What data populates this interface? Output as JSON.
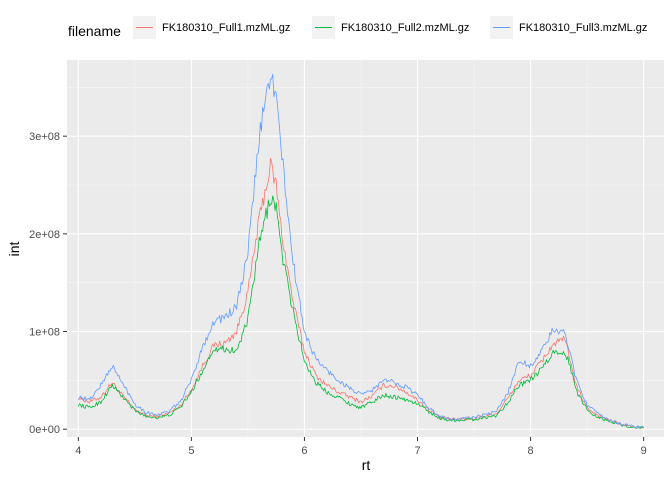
{
  "chart_data": {
    "type": "line",
    "title": "",
    "xlabel": "rt",
    "ylabel": "int",
    "xlim": [
      3.9,
      9.18
    ],
    "ylim": [
      -8000000,
      378000000
    ],
    "x_ticks": [
      4,
      5,
      6,
      7,
      8,
      9
    ],
    "x_tick_labels": [
      "4",
      "5",
      "6",
      "7",
      "8",
      "9"
    ],
    "y_ticks": [
      0,
      100000000,
      200000000,
      300000000
    ],
    "y_tick_labels": [
      "0e+00",
      "1e+08",
      "2e+08",
      "3e+08"
    ],
    "grid": true,
    "legend": {
      "position": "top",
      "title": "filename"
    },
    "series": [
      {
        "name": "FK180310_Full1.mzML.gz",
        "color": "#F8766D",
        "points": [
          [
            4.0,
            32000000
          ],
          [
            4.1,
            28000000
          ],
          [
            4.2,
            33000000
          ],
          [
            4.3,
            48000000
          ],
          [
            4.4,
            33000000
          ],
          [
            4.5,
            20000000
          ],
          [
            4.6,
            14000000
          ],
          [
            4.7,
            13000000
          ],
          [
            4.8,
            16000000
          ],
          [
            4.9,
            24000000
          ],
          [
            5.0,
            40000000
          ],
          [
            5.1,
            65000000
          ],
          [
            5.2,
            86000000
          ],
          [
            5.3,
            88000000
          ],
          [
            5.4,
            100000000
          ],
          [
            5.5,
            140000000
          ],
          [
            5.6,
            215000000
          ],
          [
            5.7,
            270000000
          ],
          [
            5.75,
            250000000
          ],
          [
            5.8,
            200000000
          ],
          [
            5.9,
            130000000
          ],
          [
            6.0,
            80000000
          ],
          [
            6.1,
            55000000
          ],
          [
            6.2,
            45000000
          ],
          [
            6.3,
            38000000
          ],
          [
            6.4,
            33000000
          ],
          [
            6.5,
            28000000
          ],
          [
            6.6,
            34000000
          ],
          [
            6.7,
            45000000
          ],
          [
            6.8,
            44000000
          ],
          [
            6.9,
            38000000
          ],
          [
            7.0,
            30000000
          ],
          [
            7.1,
            20000000
          ],
          [
            7.2,
            12000000
          ],
          [
            7.3,
            10000000
          ],
          [
            7.5,
            11000000
          ],
          [
            7.7,
            16000000
          ],
          [
            7.8,
            32000000
          ],
          [
            7.9,
            50000000
          ],
          [
            8.0,
            55000000
          ],
          [
            8.1,
            70000000
          ],
          [
            8.2,
            87000000
          ],
          [
            8.3,
            92000000
          ],
          [
            8.35,
            72000000
          ],
          [
            8.4,
            45000000
          ],
          [
            8.5,
            22000000
          ],
          [
            8.6,
            14000000
          ],
          [
            8.7,
            9000000
          ],
          [
            8.8,
            5000000
          ],
          [
            8.9,
            2500000
          ],
          [
            9.0,
            1500000
          ]
        ]
      },
      {
        "name": "FK180310_Full2.mzML.gz",
        "color": "#00BA38",
        "points": [
          [
            4.0,
            25000000
          ],
          [
            4.1,
            22000000
          ],
          [
            4.2,
            28000000
          ],
          [
            4.3,
            45000000
          ],
          [
            4.4,
            32000000
          ],
          [
            4.5,
            19000000
          ],
          [
            4.6,
            13000000
          ],
          [
            4.7,
            12000000
          ],
          [
            4.8,
            14000000
          ],
          [
            4.9,
            22000000
          ],
          [
            5.0,
            38000000
          ],
          [
            5.1,
            60000000
          ],
          [
            5.2,
            83000000
          ],
          [
            5.3,
            82000000
          ],
          [
            5.4,
            80000000
          ],
          [
            5.5,
            112000000
          ],
          [
            5.6,
            190000000
          ],
          [
            5.7,
            238000000
          ],
          [
            5.75,
            228000000
          ],
          [
            5.8,
            180000000
          ],
          [
            5.9,
            120000000
          ],
          [
            6.0,
            70000000
          ],
          [
            6.1,
            48000000
          ],
          [
            6.2,
            38000000
          ],
          [
            6.3,
            33000000
          ],
          [
            6.4,
            26000000
          ],
          [
            6.5,
            22000000
          ],
          [
            6.6,
            28000000
          ],
          [
            6.7,
            35000000
          ],
          [
            6.8,
            33000000
          ],
          [
            6.9,
            30000000
          ],
          [
            7.0,
            26000000
          ],
          [
            7.1,
            18000000
          ],
          [
            7.2,
            11000000
          ],
          [
            7.3,
            9000000
          ],
          [
            7.5,
            10000000
          ],
          [
            7.7,
            14000000
          ],
          [
            7.8,
            28000000
          ],
          [
            7.9,
            45000000
          ],
          [
            8.0,
            50000000
          ],
          [
            8.1,
            62000000
          ],
          [
            8.2,
            78000000
          ],
          [
            8.3,
            80000000
          ],
          [
            8.35,
            65000000
          ],
          [
            8.4,
            40000000
          ],
          [
            8.5,
            20000000
          ],
          [
            8.6,
            12000000
          ],
          [
            8.7,
            8000000
          ],
          [
            8.8,
            4500000
          ],
          [
            8.9,
            2000000
          ],
          [
            9.0,
            1500000
          ]
        ]
      },
      {
        "name": "FK180310_Full3.mzML.gz",
        "color": "#619CFF",
        "points": [
          [
            4.0,
            33000000
          ],
          [
            4.1,
            30000000
          ],
          [
            4.2,
            45000000
          ],
          [
            4.3,
            65000000
          ],
          [
            4.4,
            45000000
          ],
          [
            4.5,
            26000000
          ],
          [
            4.6,
            17000000
          ],
          [
            4.7,
            15000000
          ],
          [
            4.8,
            18000000
          ],
          [
            4.9,
            28000000
          ],
          [
            5.0,
            50000000
          ],
          [
            5.1,
            85000000
          ],
          [
            5.2,
            110000000
          ],
          [
            5.3,
            115000000
          ],
          [
            5.4,
            125000000
          ],
          [
            5.5,
            180000000
          ],
          [
            5.6,
            300000000
          ],
          [
            5.7,
            365000000
          ],
          [
            5.75,
            340000000
          ],
          [
            5.8,
            280000000
          ],
          [
            5.9,
            170000000
          ],
          [
            6.0,
            100000000
          ],
          [
            6.1,
            72000000
          ],
          [
            6.2,
            60000000
          ],
          [
            6.3,
            50000000
          ],
          [
            6.4,
            42000000
          ],
          [
            6.5,
            35000000
          ],
          [
            6.6,
            40000000
          ],
          [
            6.7,
            50000000
          ],
          [
            6.8,
            48000000
          ],
          [
            6.9,
            43000000
          ],
          [
            7.0,
            35000000
          ],
          [
            7.1,
            22000000
          ],
          [
            7.2,
            13000000
          ],
          [
            7.3,
            10000000
          ],
          [
            7.5,
            12000000
          ],
          [
            7.7,
            18000000
          ],
          [
            7.8,
            38000000
          ],
          [
            7.9,
            70000000
          ],
          [
            8.0,
            65000000
          ],
          [
            8.1,
            80000000
          ],
          [
            8.2,
            102000000
          ],
          [
            8.3,
            98000000
          ],
          [
            8.35,
            80000000
          ],
          [
            8.4,
            52000000
          ],
          [
            8.5,
            25000000
          ],
          [
            8.6,
            15000000
          ],
          [
            8.7,
            9500000
          ],
          [
            8.8,
            5500000
          ],
          [
            8.9,
            3000000
          ],
          [
            9.0,
            1800000
          ]
        ]
      }
    ]
  }
}
